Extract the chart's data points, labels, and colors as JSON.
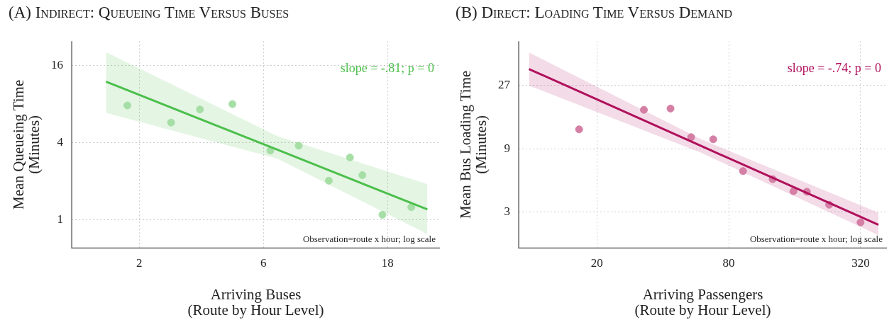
{
  "chart_data": [
    {
      "type": "scatter",
      "title": "(A) Indirect: Queueing Time Versus Buses",
      "xlabel": "Arriving Buses\n(Route by Hour Level)",
      "ylabel": "Mean Queueing Time\n(Minutes)",
      "log": "xy",
      "grid": true,
      "xlim": [
        1.1,
        28.6
      ],
      "xticks": [
        2,
        6,
        18
      ],
      "ylim": [
        0.62,
        24.6
      ],
      "yticks": [
        1,
        4,
        16
      ],
      "annotations": [
        "slope = -.81; p = 0",
        "Observation=route x hour; log scale"
      ],
      "series": [
        {
          "type": "scatter",
          "marker": "circle",
          "color": "#a6dfa6",
          "x": [
            1.8,
            2.65,
            3.42,
            4.56,
            6.38,
            8.2,
            10.7,
            12.9,
            14.4,
            17.2,
            22.2
          ],
          "values": [
            7.76,
            5.71,
            7.22,
            7.95,
            3.45,
            3.77,
            2.01,
            3.05,
            2.22,
            1.09,
            1.25
          ]
        },
        {
          "type": "line",
          "color": "#4cbf4c",
          "x": [
            1.49,
            6.8,
            25.6
          ],
          "values": [
            11.9,
            3.5,
            1.2
          ],
          "lower": [
            6.79,
            2.98,
            0.77
          ],
          "upper": [
            20.2,
            4.47,
            1.89
          ]
        }
      ]
    },
    {
      "type": "scatter",
      "title": "(B) Direct: Loading Time Versus Demand",
      "xlabel": "Arriving Passengers\n(Route by Hour Level)",
      "ylabel": "Mean Bus Loading Time\n(Minutes)",
      "log": "xy",
      "grid": true,
      "xlim": [
        8.8,
        422
      ],
      "xticks": [
        20,
        80,
        320
      ],
      "ylim": [
        1.6,
        58.4
      ],
      "yticks": [
        3,
        9,
        27
      ],
      "annotations": [
        "slope = -.74; p = 0",
        "Observation=route x hour; log scale"
      ],
      "series": [
        {
          "type": "scatter",
          "marker": "circle",
          "color": "#d57fa5",
          "x": [
            16.6,
            32.8,
            43.4,
            53.9,
            68,
            93,
            127,
            158,
            182,
            230,
            320
          ],
          "values": [
            12.6,
            17.7,
            18.1,
            11.0,
            10.6,
            6.1,
            5.3,
            4.3,
            4.26,
            3.4,
            2.5
          ]
        },
        {
          "type": "line",
          "color": "#b0105c",
          "x": [
            9.8,
            59.8,
            386
          ],
          "values": [
            36,
            9.45,
            2.4
          ],
          "lower": [
            27,
            8.4,
            2.0
          ],
          "upper": [
            48,
            10.6,
            2.96
          ]
        }
      ]
    }
  ]
}
